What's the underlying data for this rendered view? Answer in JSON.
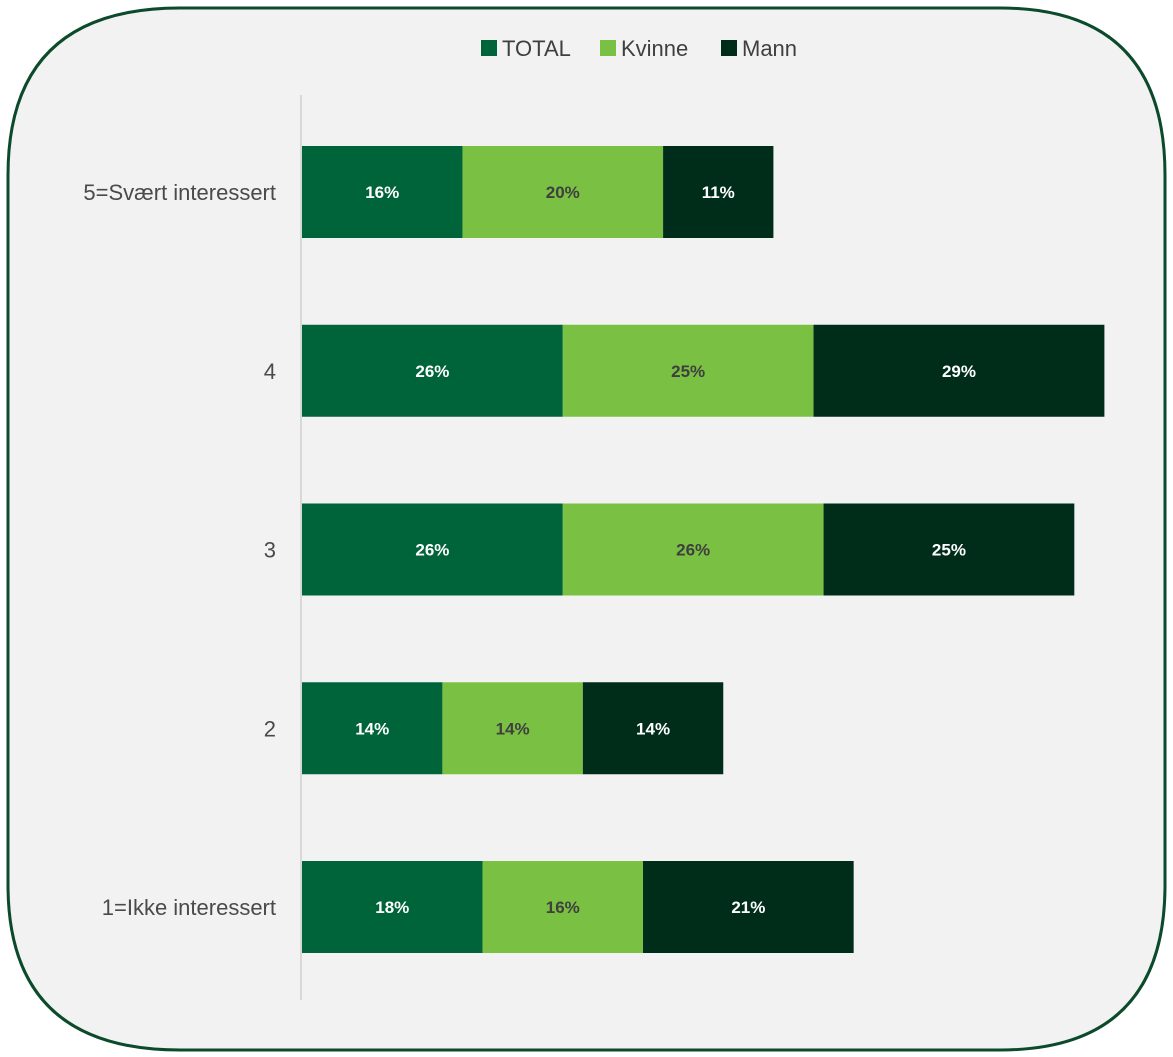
{
  "colors": {
    "background": "#f2f2f2",
    "frame_border": "#0b4a2a",
    "axis_line": "#d0d0d0"
  },
  "chart_data": {
    "type": "bar",
    "orientation": "horizontal",
    "stacked": true,
    "title": "",
    "xlabel": "",
    "ylabel": "",
    "categories": [
      "5=Svært interessert",
      "4",
      "3",
      "2",
      "1=Ikke interessert"
    ],
    "series": [
      {
        "name": "TOTAL",
        "color": "#00643a",
        "label_color": "#ffffff",
        "values": [
          16,
          26,
          26,
          14,
          18
        ],
        "labels": [
          "16%",
          "26%",
          "26%",
          "14%",
          "18%"
        ]
      },
      {
        "name": "Kvinne",
        "color": "#7ac143",
        "label_color": "#3f3f3f",
        "values": [
          20,
          25,
          26,
          14,
          16
        ],
        "labels": [
          "20%",
          "25%",
          "26%",
          "14%",
          "16%"
        ]
      },
      {
        "name": "Mann",
        "color": "#002d1a",
        "label_color": "#ffffff",
        "values": [
          11,
          29,
          25,
          14,
          21
        ],
        "labels": [
          "11%",
          "29%",
          "25%",
          "14%",
          "21%"
        ]
      }
    ],
    "legend": {
      "position": "top"
    },
    "grid": false
  }
}
